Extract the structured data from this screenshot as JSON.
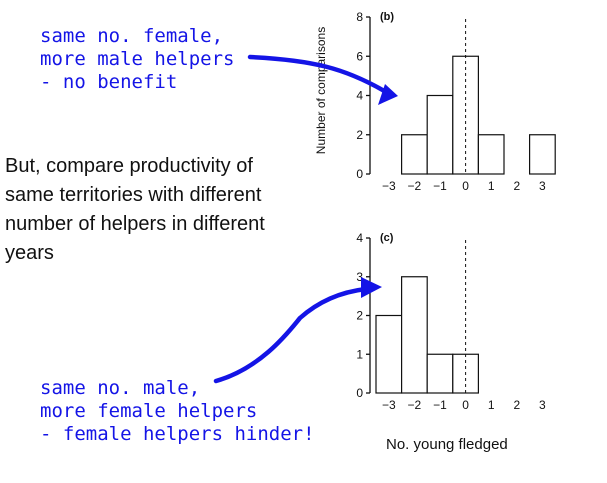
{
  "annotations": {
    "top_note": "same no. female,\nmore male helpers\n- no benefit",
    "main_text": "But, compare productivity of  same territories with different number of helpers in different years",
    "bottom_note": "same no. male,\nmore female helpers\n- female helpers hinder!"
  },
  "colors": {
    "annotation": "#1414e6",
    "text": "#111111"
  },
  "chart_data": [
    {
      "type": "bar",
      "panel_label": "(b)",
      "ylabel": "Number of comparisons",
      "xlabel": "",
      "categories": [
        "-3",
        "-2",
        "-1",
        "0",
        "1",
        "2",
        "3"
      ],
      "tick_labels": [
        "−3",
        "−2",
        "−1",
        "0",
        "1",
        "2",
        "3"
      ],
      "values": [
        0,
        2,
        4,
        6,
        2,
        0,
        2
      ],
      "y_ticks": [
        "0",
        "2",
        "4",
        "6",
        "8"
      ],
      "ylim": [
        0,
        8
      ],
      "reference_line_at": "0",
      "grid": false
    },
    {
      "type": "bar",
      "panel_label": "(c)",
      "ylabel": "",
      "xlabel": "No. young fledged",
      "categories": [
        "-3",
        "-2",
        "-1",
        "0",
        "1",
        "2",
        "3"
      ],
      "tick_labels": [
        "−3",
        "−2",
        "−1",
        "0",
        "1",
        "2",
        "3"
      ],
      "values": [
        2,
        3,
        1,
        1,
        0,
        0,
        0
      ],
      "y_ticks": [
        "0",
        "1",
        "2",
        "3",
        "4"
      ],
      "ylim": [
        0,
        4
      ],
      "reference_line_at": "0",
      "grid": false
    }
  ]
}
